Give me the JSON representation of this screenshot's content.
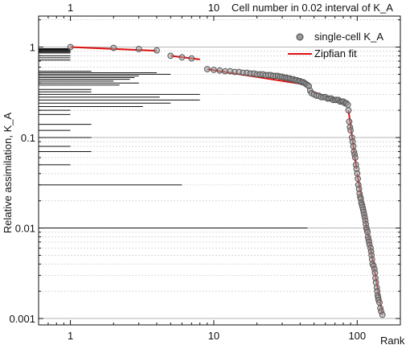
{
  "chart_data": {
    "type": "scatter",
    "title": "",
    "x_axis": {
      "label": "Rank",
      "scale": "log",
      "range": [
        0.6,
        200
      ],
      "ticks": [
        1,
        10,
        100
      ],
      "tick_labels": [
        "1",
        "10",
        "100"
      ]
    },
    "x2_axis": {
      "label": "Cell number in 0.02 interval of K_A",
      "scale": "log",
      "range": [
        0.6,
        200
      ],
      "ticks": [
        1,
        10
      ],
      "tick_labels": [
        "1",
        "10"
      ]
    },
    "y_axis": {
      "label": "Relative assimilation, K_A",
      "scale": "log",
      "range": [
        0.00085,
        2.2
      ],
      "ticks": [
        1,
        0.1,
        0.01,
        0.001
      ],
      "tick_labels": [
        "1",
        "0.1",
        "0.01",
        "0.001"
      ]
    },
    "grid": "horizontal minor lines (log scale)",
    "legend": {
      "position": "top-right",
      "entries": [
        {
          "label": "single-cell K_A",
          "marker": "circle",
          "color": "#888888"
        },
        {
          "label": "Zipfian fit",
          "marker": "line",
          "color": "#dd1111"
        }
      ]
    },
    "series": [
      {
        "name": "single-cell K_A",
        "points": [
          [
            1,
            1.0
          ],
          [
            2,
            0.98
          ],
          [
            3,
            0.95
          ],
          [
            4,
            0.92
          ],
          [
            5,
            0.8
          ],
          [
            6,
            0.77
          ],
          [
            7,
            0.75
          ],
          [
            9,
            0.57
          ],
          [
            10,
            0.56
          ],
          [
            11,
            0.55
          ],
          [
            12,
            0.54
          ],
          [
            13,
            0.54
          ],
          [
            14,
            0.53
          ],
          [
            15,
            0.53
          ],
          [
            16,
            0.52
          ],
          [
            17,
            0.52
          ],
          [
            18,
            0.51
          ],
          [
            19,
            0.51
          ],
          [
            20,
            0.5
          ],
          [
            21,
            0.5
          ],
          [
            22,
            0.5
          ],
          [
            23,
            0.49
          ],
          [
            24,
            0.49
          ],
          [
            25,
            0.49
          ],
          [
            26,
            0.48
          ],
          [
            27,
            0.48
          ],
          [
            28,
            0.48
          ],
          [
            29,
            0.47
          ],
          [
            30,
            0.47
          ],
          [
            31,
            0.46
          ],
          [
            32,
            0.46
          ],
          [
            33,
            0.45
          ],
          [
            34,
            0.45
          ],
          [
            35,
            0.44
          ],
          [
            36,
            0.44
          ],
          [
            37,
            0.43
          ],
          [
            38,
            0.43
          ],
          [
            39,
            0.42
          ],
          [
            40,
            0.42
          ],
          [
            41,
            0.41
          ],
          [
            42,
            0.41
          ],
          [
            43,
            0.4
          ],
          [
            44,
            0.39
          ],
          [
            45,
            0.38
          ],
          [
            46,
            0.37
          ],
          [
            47,
            0.33
          ],
          [
            48,
            0.31
          ],
          [
            50,
            0.3
          ],
          [
            52,
            0.29
          ],
          [
            54,
            0.29
          ],
          [
            56,
            0.28
          ],
          [
            58,
            0.28
          ],
          [
            60,
            0.28
          ],
          [
            62,
            0.27
          ],
          [
            64,
            0.27
          ],
          [
            66,
            0.27
          ],
          [
            68,
            0.26
          ],
          [
            70,
            0.26
          ],
          [
            72,
            0.26
          ],
          [
            74,
            0.26
          ],
          [
            76,
            0.25
          ],
          [
            78,
            0.25
          ],
          [
            80,
            0.25
          ],
          [
            82,
            0.24
          ],
          [
            84,
            0.24
          ],
          [
            86,
            0.23
          ],
          [
            87,
            0.2
          ],
          [
            88,
            0.15
          ],
          [
            89,
            0.13
          ],
          [
            90,
            0.12
          ],
          [
            92,
            0.1
          ],
          [
            93,
            0.09
          ],
          [
            94,
            0.08
          ],
          [
            95,
            0.07
          ],
          [
            96,
            0.065
          ],
          [
            97,
            0.06
          ],
          [
            98,
            0.05
          ],
          [
            99,
            0.045
          ],
          [
            100,
            0.04
          ],
          [
            101,
            0.035
          ],
          [
            102,
            0.03
          ],
          [
            103,
            0.027
          ],
          [
            104,
            0.024
          ],
          [
            105,
            0.022
          ],
          [
            106,
            0.021
          ],
          [
            107,
            0.019
          ],
          [
            108,
            0.018
          ],
          [
            109,
            0.017
          ],
          [
            110,
            0.016
          ],
          [
            111,
            0.015
          ],
          [
            112,
            0.014
          ],
          [
            113,
            0.013
          ],
          [
            114,
            0.012
          ],
          [
            115,
            0.011
          ],
          [
            116,
            0.01
          ],
          [
            117,
            0.0095
          ],
          [
            118,
            0.009
          ],
          [
            119,
            0.008
          ],
          [
            120,
            0.0075
          ],
          [
            121,
            0.007
          ],
          [
            122,
            0.0065
          ],
          [
            124,
            0.006
          ],
          [
            125,
            0.0055
          ],
          [
            126,
            0.005
          ],
          [
            127,
            0.0045
          ],
          [
            128,
            0.004
          ],
          [
            130,
            0.0038
          ],
          [
            132,
            0.0035
          ],
          [
            133,
            0.0032
          ],
          [
            134,
            0.0028
          ],
          [
            135,
            0.0025
          ],
          [
            137,
            0.0022
          ],
          [
            138,
            0.002
          ],
          [
            139,
            0.0018
          ],
          [
            140,
            0.0017
          ],
          [
            141,
            0.0016
          ],
          [
            143,
            0.0015
          ],
          [
            145,
            0.0013
          ],
          [
            147,
            0.0012
          ],
          [
            150,
            0.0011
          ]
        ]
      },
      {
        "name": "Zipfian fit",
        "segments": [
          [
            [
              1,
              1.0
            ],
            [
              4,
              0.91
            ]
          ],
          [
            [
              5,
              0.8
            ],
            [
              8,
              0.73
            ]
          ],
          [
            [
              9,
              0.57
            ],
            [
              46,
              0.38
            ]
          ],
          [
            [
              47,
              0.33
            ],
            [
              86,
              0.23
            ]
          ],
          [
            [
              87,
              0.2
            ],
            [
              99,
              0.045
            ]
          ],
          [
            [
              100,
              0.04
            ],
            [
              150,
              0.0011
            ]
          ]
        ]
      }
    ],
    "top_histogram": {
      "description": "horizontal bars: cell number per 0.02 interval of K_A",
      "bars": [
        [
          0.96,
          1
        ],
        [
          0.94,
          1
        ],
        [
          0.92,
          1
        ],
        [
          0.9,
          1
        ],
        [
          0.88,
          1
        ],
        [
          0.86,
          1
        ],
        [
          0.8,
          1
        ],
        [
          0.76,
          1
        ],
        [
          0.72,
          1
        ],
        [
          0.54,
          1.4
        ],
        [
          0.52,
          4.0
        ],
        [
          0.5,
          5.0
        ],
        [
          0.48,
          3.0
        ],
        [
          0.46,
          2.8
        ],
        [
          0.44,
          2.6
        ],
        [
          0.42,
          2.0
        ],
        [
          0.4,
          3.0
        ],
        [
          0.38,
          2.2
        ],
        [
          0.34,
          1.4
        ],
        [
          0.32,
          1.4
        ],
        [
          0.3,
          8.0
        ],
        [
          0.28,
          4.2
        ],
        [
          0.26,
          8.0
        ],
        [
          0.24,
          5.0
        ],
        [
          0.22,
          3.2
        ],
        [
          0.2,
          1.0
        ],
        [
          0.18,
          1.0
        ],
        [
          0.14,
          1.4
        ],
        [
          0.12,
          1.0
        ],
        [
          0.1,
          1.4
        ],
        [
          0.08,
          1.0
        ],
        [
          0.07,
          1.4
        ],
        [
          0.05,
          1.0
        ],
        [
          0.03,
          6.0
        ],
        [
          0.01,
          45
        ]
      ]
    }
  }
}
